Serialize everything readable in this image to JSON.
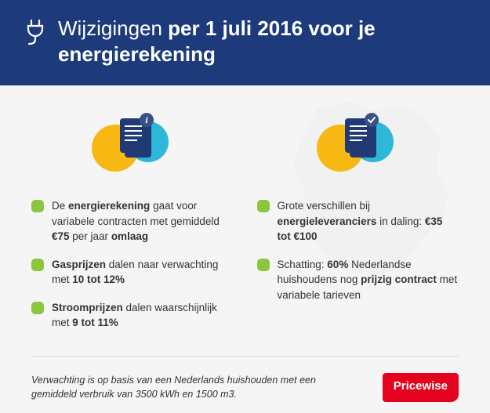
{
  "colors": {
    "header_bg": "#1d3b7a",
    "body_bg": "#f5f5f5",
    "accent_yellow": "#f8b814",
    "accent_cyan": "#2db7d8",
    "accent_navy": "#223a74",
    "bullet": "#8ec53e",
    "brand_red": "#e4031e",
    "map_fill": "#e6e6e6",
    "text": "#333333",
    "divider": "#d5d5d5"
  },
  "header": {
    "title_light": "Wijzigingen ",
    "title_bold": "per 1 juli 2016 voor je energierekening"
  },
  "columns": {
    "left": {
      "badge": "i",
      "items": [
        "De <b>energierekening</b> gaat voor variabele contracten met gemiddeld <b>€75</b> per jaar <b>omlaag</b>",
        "<b>Gasprijzen</b> dalen naar verwachting met <b>10 tot 12%</b>",
        "<b>Stroomprijzen</b> dalen waarschijnlijk met <b>9 tot 11%</b>"
      ]
    },
    "right": {
      "badge": "check",
      "items": [
        "Grote verschillen bij <b>energieleveranciers</b> in daling: <b>€35 tot €100</b>",
        "Schatting: <b>60%</b> Nederlandse huishoudens nog <b>prijzig contract</b> met variabele tarieven"
      ]
    }
  },
  "footer": {
    "note": "Verwachting is op basis van een Nederlands huishouden met een gemiddeld verbruik van 3500 kWh en 1500 m3.",
    "brand": "Pricewise"
  }
}
